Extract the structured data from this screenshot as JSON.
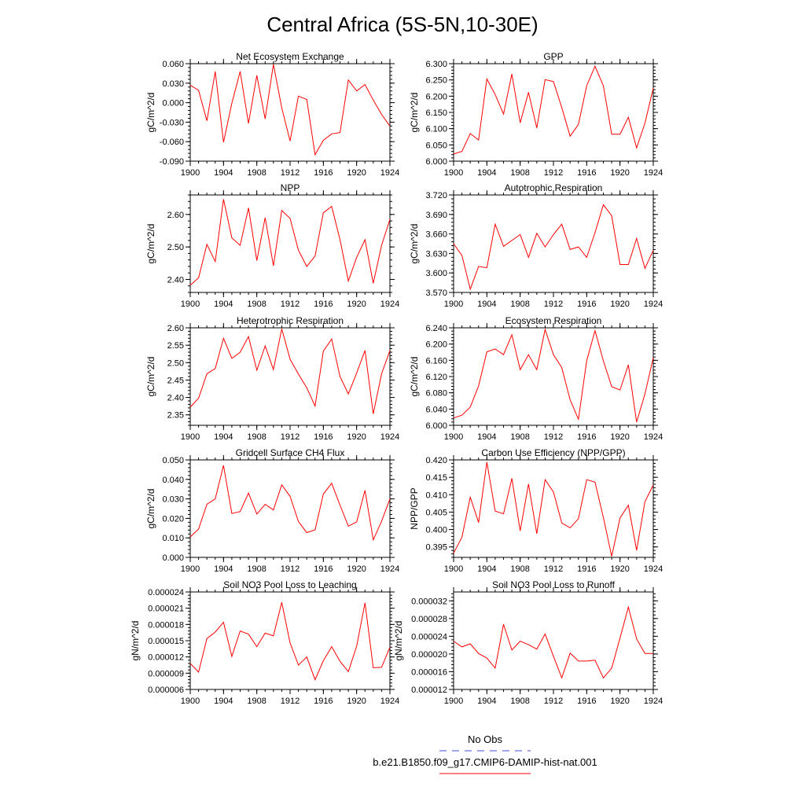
{
  "figure": {
    "title": "Central Africa (5S-5N,10-30E)"
  },
  "legend": {
    "entries": [
      {
        "label": "No Obs",
        "color": "#4a4ad8",
        "dash": true
      },
      {
        "label": "b.e21.B1850.f09_g17.CMIP6-DAMIP-hist-nat.001",
        "color": "#ff0000",
        "dash": false
      }
    ]
  },
  "chart_data": [
    {
      "type": "line",
      "title": "Net Ecosystem Exchange",
      "ylabel": "gC/m^2/d",
      "xlim": [
        1900,
        1924
      ],
      "xticks": [
        1900,
        1904,
        1908,
        1912,
        1916,
        1920,
        1924
      ],
      "ylim": [
        -0.09,
        0.06
      ],
      "yticks": [
        -0.09,
        -0.06,
        -0.03,
        0.0,
        0.03,
        0.06
      ],
      "ytick_labels": [
        "-0.090",
        "-0.060",
        "-0.030",
        "0.000",
        "0.030",
        "0.060"
      ],
      "series": [
        {
          "color": "#ff0000",
          "x": [
            1900,
            1901,
            1902,
            1903,
            1904,
            1905,
            1906,
            1907,
            1908,
            1909,
            1910,
            1911,
            1912,
            1913,
            1914,
            1915,
            1916,
            1917,
            1918,
            1919,
            1920,
            1921,
            1922,
            1923,
            1924
          ],
          "values": [
            0.027,
            0.019,
            -0.028,
            0.048,
            -0.061,
            -0.001,
            0.048,
            -0.032,
            0.042,
            -0.025,
            0.059,
            -0.008,
            -0.059,
            0.01,
            0.005,
            -0.08,
            -0.058,
            -0.048,
            -0.046,
            0.035,
            0.018,
            0.028,
            0.004,
            -0.018,
            -0.036
          ]
        }
      ]
    },
    {
      "type": "line",
      "title": "GPP",
      "ylabel": "gC/m^2/d",
      "xlim": [
        1900,
        1924
      ],
      "xticks": [
        1900,
        1904,
        1908,
        1912,
        1916,
        1920,
        1924
      ],
      "ylim": [
        6.0,
        6.3
      ],
      "yticks": [
        6.0,
        6.05,
        6.1,
        6.15,
        6.2,
        6.25,
        6.3
      ],
      "ytick_labels": [
        "6.000",
        "6.050",
        "6.100",
        "6.150",
        "6.200",
        "6.250",
        "6.300"
      ],
      "series": [
        {
          "color": "#ff0000",
          "x": [
            1900,
            1901,
            1902,
            1903,
            1904,
            1905,
            1906,
            1907,
            1908,
            1909,
            1910,
            1911,
            1912,
            1913,
            1914,
            1915,
            1916,
            1917,
            1918,
            1919,
            1920,
            1921,
            1922,
            1923,
            1924
          ],
          "values": [
            6.022,
            6.03,
            6.085,
            6.065,
            6.253,
            6.205,
            6.145,
            6.268,
            6.118,
            6.212,
            6.102,
            6.251,
            6.245,
            6.165,
            6.077,
            6.113,
            6.232,
            6.292,
            6.232,
            6.083,
            6.083,
            6.135,
            6.041,
            6.117,
            6.225
          ]
        }
      ]
    },
    {
      "type": "line",
      "title": "NPP",
      "ylabel": "gC/m^2/d",
      "xlim": [
        1900,
        1924
      ],
      "xticks": [
        1900,
        1904,
        1908,
        1912,
        1916,
        1920,
        1924
      ],
      "ylim": [
        2.36,
        2.66
      ],
      "yticks": [
        2.4,
        2.5,
        2.6
      ],
      "ytick_labels": [
        "2.40",
        "2.50",
        "2.60"
      ],
      "series": [
        {
          "color": "#ff0000",
          "x": [
            1900,
            1901,
            1902,
            1903,
            1904,
            1905,
            1906,
            1907,
            1908,
            1909,
            1910,
            1911,
            1912,
            1913,
            1914,
            1915,
            1916,
            1917,
            1918,
            1919,
            1920,
            1921,
            1922,
            1923,
            1924
          ],
          "values": [
            2.382,
            2.405,
            2.508,
            2.455,
            2.647,
            2.528,
            2.505,
            2.62,
            2.458,
            2.59,
            2.442,
            2.612,
            2.588,
            2.49,
            2.44,
            2.472,
            2.605,
            2.625,
            2.522,
            2.395,
            2.468,
            2.522,
            2.388,
            2.505,
            2.585
          ]
        }
      ]
    },
    {
      "type": "line",
      "title": "Autotrophic Respiration",
      "ylabel": "gC/m^2/d",
      "xlim": [
        1900,
        1924
      ],
      "xticks": [
        1900,
        1904,
        1908,
        1912,
        1916,
        1920,
        1924
      ],
      "ylim": [
        3.57,
        3.72
      ],
      "yticks": [
        3.57,
        3.6,
        3.63,
        3.66,
        3.69,
        3.72
      ],
      "ytick_labels": [
        "3.570",
        "3.600",
        "3.630",
        "3.660",
        "3.690",
        "3.720"
      ],
      "series": [
        {
          "color": "#ff0000",
          "x": [
            1900,
            1901,
            1902,
            1903,
            1904,
            1905,
            1906,
            1907,
            1908,
            1909,
            1910,
            1911,
            1912,
            1913,
            1914,
            1915,
            1916,
            1917,
            1918,
            1919,
            1920,
            1921,
            1922,
            1923,
            1924
          ],
          "values": [
            3.645,
            3.627,
            3.575,
            3.61,
            3.608,
            3.675,
            3.641,
            3.65,
            3.659,
            3.624,
            3.661,
            3.64,
            3.659,
            3.675,
            3.636,
            3.64,
            3.624,
            3.662,
            3.705,
            3.688,
            3.613,
            3.613,
            3.653,
            3.607,
            3.635
          ]
        }
      ]
    },
    {
      "type": "line",
      "title": "Heterotrophic Respiration",
      "ylabel": "gC/m^2/d",
      "xlim": [
        1900,
        1924
      ],
      "xticks": [
        1900,
        1904,
        1908,
        1912,
        1916,
        1920,
        1924
      ],
      "ylim": [
        2.32,
        2.6
      ],
      "yticks": [
        2.35,
        2.4,
        2.45,
        2.5,
        2.55,
        2.6
      ],
      "ytick_labels": [
        "2.35",
        "2.40",
        "2.45",
        "2.50",
        "2.55",
        "2.60"
      ],
      "series": [
        {
          "color": "#ff0000",
          "x": [
            1900,
            1901,
            1902,
            1903,
            1904,
            1905,
            1906,
            1907,
            1908,
            1909,
            1910,
            1911,
            1912,
            1913,
            1914,
            1915,
            1916,
            1917,
            1918,
            1919,
            1920,
            1921,
            1922,
            1923,
            1924
          ],
          "values": [
            2.372,
            2.398,
            2.468,
            2.483,
            2.57,
            2.512,
            2.53,
            2.575,
            2.478,
            2.548,
            2.48,
            2.597,
            2.51,
            2.467,
            2.428,
            2.375,
            2.533,
            2.568,
            2.46,
            2.41,
            2.47,
            2.535,
            2.353,
            2.468,
            2.535
          ]
        }
      ]
    },
    {
      "type": "line",
      "title": "Ecosystem Respiration",
      "ylabel": "gC/m^2/d",
      "xlim": [
        1900,
        1924
      ],
      "xticks": [
        1900,
        1904,
        1908,
        1912,
        1916,
        1920,
        1924
      ],
      "ylim": [
        6.0,
        6.24
      ],
      "yticks": [
        6.0,
        6.04,
        6.08,
        6.12,
        6.16,
        6.2,
        6.24
      ],
      "ytick_labels": [
        "6.000",
        "6.040",
        "6.080",
        "6.120",
        "6.160",
        "6.200",
        "6.240"
      ],
      "series": [
        {
          "color": "#ff0000",
          "x": [
            1900,
            1901,
            1902,
            1903,
            1904,
            1905,
            1906,
            1907,
            1908,
            1909,
            1910,
            1911,
            1912,
            1913,
            1914,
            1915,
            1916,
            1917,
            1918,
            1919,
            1920,
            1921,
            1922,
            1923,
            1924
          ],
          "values": [
            6.018,
            6.025,
            6.045,
            6.097,
            6.181,
            6.188,
            6.174,
            6.223,
            6.137,
            6.174,
            6.137,
            6.236,
            6.174,
            6.142,
            6.063,
            6.015,
            6.159,
            6.233,
            6.159,
            6.095,
            6.087,
            6.149,
            6.008,
            6.077,
            6.167
          ]
        }
      ]
    },
    {
      "type": "line",
      "title": "Gridcell Surface CH4 Flux",
      "ylabel": "gC/m^2/d",
      "xlim": [
        1900,
        1924
      ],
      "xticks": [
        1900,
        1904,
        1908,
        1912,
        1916,
        1920,
        1924
      ],
      "ylim": [
        0.0,
        0.05
      ],
      "yticks": [
        0.0,
        0.01,
        0.02,
        0.03,
        0.04,
        0.05
      ],
      "ytick_labels": [
        "0.000",
        "0.010",
        "0.020",
        "0.030",
        "0.040",
        "0.050"
      ],
      "series": [
        {
          "color": "#ff0000",
          "x": [
            1900,
            1901,
            1902,
            1903,
            1904,
            1905,
            1906,
            1907,
            1908,
            1909,
            1910,
            1911,
            1912,
            1913,
            1914,
            1915,
            1916,
            1917,
            1918,
            1919,
            1920,
            1921,
            1922,
            1923,
            1924
          ],
          "values": [
            0.0105,
            0.0145,
            0.0272,
            0.03,
            0.0472,
            0.0225,
            0.0235,
            0.033,
            0.0222,
            0.0272,
            0.0243,
            0.0372,
            0.0313,
            0.0184,
            0.0127,
            0.0141,
            0.0325,
            0.038,
            0.0268,
            0.016,
            0.0182,
            0.0344,
            0.009,
            0.0185,
            0.03
          ]
        }
      ]
    },
    {
      "type": "line",
      "title": "Carbon Use Efficiency (NPP/GPP)",
      "ylabel": "NPP/GPP",
      "xlim": [
        1900,
        1924
      ],
      "xticks": [
        1900,
        1904,
        1908,
        1912,
        1916,
        1920,
        1924
      ],
      "ylim": [
        0.392,
        0.42
      ],
      "yticks": [
        0.395,
        0.4,
        0.405,
        0.41,
        0.415,
        0.42
      ],
      "ytick_labels": [
        "0.395",
        "0.400",
        "0.405",
        "0.410",
        "0.415",
        "0.420"
      ],
      "series": [
        {
          "color": "#ff0000",
          "x": [
            1900,
            1901,
            1902,
            1903,
            1904,
            1905,
            1906,
            1907,
            1908,
            1909,
            1910,
            1911,
            1912,
            1913,
            1914,
            1915,
            1916,
            1917,
            1918,
            1919,
            1920,
            1921,
            1922,
            1923,
            1924
          ],
          "values": [
            0.3932,
            0.3978,
            0.4093,
            0.402,
            0.4194,
            0.4053,
            0.4045,
            0.4147,
            0.3996,
            0.4131,
            0.3988,
            0.4143,
            0.4108,
            0.4019,
            0.4005,
            0.4031,
            0.4143,
            0.4136,
            0.4035,
            0.3923,
            0.4033,
            0.407,
            0.394,
            0.408,
            0.4128
          ]
        }
      ]
    },
    {
      "type": "line",
      "title": "Soil NO3 Pool Loss to Leaching",
      "ylabel": "gN/m^2/d",
      "xlim": [
        1900,
        1924
      ],
      "xticks": [
        1900,
        1904,
        1908,
        1912,
        1916,
        1920,
        1924
      ],
      "ylim": [
        6e-06,
        2.4e-05
      ],
      "yticks": [
        6e-06,
        9e-06,
        1.2e-05,
        1.5e-05,
        1.8e-05,
        2.1e-05,
        2.4e-05
      ],
      "ytick_labels": [
        "0.000006",
        "0.000009",
        "0.000012",
        "0.000015",
        "0.000018",
        "0.000021",
        "0.000024"
      ],
      "series": [
        {
          "color": "#ff0000",
          "x": [
            1900,
            1901,
            1902,
            1903,
            1904,
            1905,
            1906,
            1907,
            1908,
            1909,
            1910,
            1911,
            1912,
            1913,
            1914,
            1915,
            1916,
            1917,
            1918,
            1919,
            1920,
            1921,
            1922,
            1923,
            1924
          ],
          "values": [
            1.08e-05,
            9.2e-06,
            1.54e-05,
            1.66e-05,
            1.84e-05,
            1.21e-05,
            1.68e-05,
            1.62e-05,
            1.39e-05,
            1.64e-05,
            1.59e-05,
            2.21e-05,
            1.46e-05,
            1.05e-05,
            1.2e-05,
            7.8e-06,
            1.13e-05,
            1.39e-05,
            1.12e-05,
            9.3e-06,
            1.4e-05,
            2.2e-05,
            1e-05,
            1.01e-05,
            1.38e-05
          ]
        }
      ]
    },
    {
      "type": "line",
      "title": "Soil NO3 Pool Loss to Runoff",
      "ylabel": "gN/m^2/d",
      "xlim": [
        1900,
        1924
      ],
      "xticks": [
        1900,
        1904,
        1908,
        1912,
        1916,
        1920,
        1924
      ],
      "ylim": [
        1.2e-05,
        3.4e-05
      ],
      "yticks": [
        1.2e-05,
        1.6e-05,
        2e-05,
        2.4e-05,
        2.8e-05,
        3.2e-05
      ],
      "ytick_labels": [
        "0.000012",
        "0.000016",
        "0.000020",
        "0.000024",
        "0.000028",
        "0.000032"
      ],
      "series": [
        {
          "color": "#ff0000",
          "x": [
            1900,
            1901,
            1902,
            1903,
            1904,
            1905,
            1906,
            1907,
            1908,
            1909,
            1910,
            1911,
            1912,
            1913,
            1914,
            1915,
            1916,
            1917,
            1918,
            1919,
            1920,
            1921,
            1922,
            1923,
            1924
          ],
          "values": [
            2.29e-05,
            2.16e-05,
            2.23e-05,
            2.01e-05,
            1.91e-05,
            1.68e-05,
            2.67e-05,
            2.09e-05,
            2.29e-05,
            2.21e-05,
            2.11e-05,
            2.45e-05,
            1.95e-05,
            1.46e-05,
            2.02e-05,
            1.84e-05,
            1.84e-05,
            1.86e-05,
            1.46e-05,
            1.68e-05,
            2.36e-05,
            3.06e-05,
            2.34e-05,
            2.01e-05,
            2.01e-05
          ]
        }
      ]
    }
  ]
}
